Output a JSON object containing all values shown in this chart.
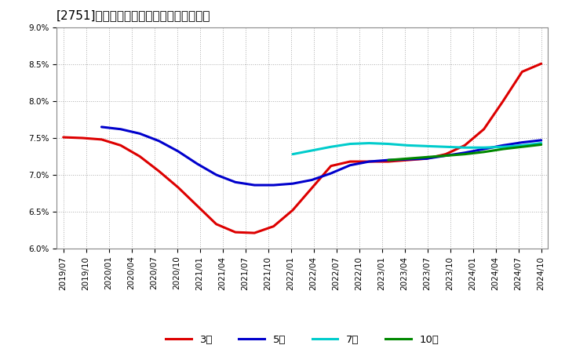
{
  "title": "[2751]　経常利益マージンの平均値の推移",
  "ylim": [
    0.06,
    0.09
  ],
  "yticks": [
    0.06,
    0.065,
    0.07,
    0.075,
    0.08,
    0.085,
    0.09
  ],
  "ytick_labels": [
    "6.0%",
    "6.5%",
    "7.0%",
    "7.5%",
    "8.0%",
    "8.5%",
    "9.0%"
  ],
  "background_color": "#ffffff",
  "grid_color": "#999999",
  "series": {
    "3year": {
      "color": "#dd0000",
      "label": "3年",
      "points": [
        [
          0,
          0.0751
        ],
        [
          1,
          0.075
        ],
        [
          2,
          0.0748
        ],
        [
          3,
          0.074
        ],
        [
          4,
          0.0725
        ],
        [
          5,
          0.0705
        ],
        [
          6,
          0.0683
        ],
        [
          7,
          0.0658
        ],
        [
          8,
          0.0633
        ],
        [
          9,
          0.0622
        ],
        [
          10,
          0.0621
        ],
        [
          11,
          0.063
        ],
        [
          12,
          0.0652
        ],
        [
          13,
          0.0682
        ],
        [
          14,
          0.0712
        ],
        [
          15,
          0.0718
        ],
        [
          16,
          0.0718
        ],
        [
          17,
          0.0718
        ],
        [
          18,
          0.072
        ],
        [
          19,
          0.0722
        ],
        [
          20,
          0.0728
        ],
        [
          21,
          0.074
        ],
        [
          22,
          0.0762
        ],
        [
          23,
          0.08
        ],
        [
          24,
          0.084
        ],
        [
          25,
          0.0851
        ]
      ]
    },
    "5year": {
      "color": "#0000cc",
      "label": "5年",
      "points": [
        [
          2,
          0.0765
        ],
        [
          3,
          0.0762
        ],
        [
          4,
          0.0756
        ],
        [
          5,
          0.0746
        ],
        [
          6,
          0.0732
        ],
        [
          7,
          0.0715
        ],
        [
          8,
          0.07
        ],
        [
          9,
          0.069
        ],
        [
          10,
          0.0686
        ],
        [
          11,
          0.0686
        ],
        [
          12,
          0.0688
        ],
        [
          13,
          0.0693
        ],
        [
          14,
          0.0702
        ],
        [
          15,
          0.0713
        ],
        [
          16,
          0.0718
        ],
        [
          17,
          0.072
        ],
        [
          18,
          0.0721
        ],
        [
          19,
          0.0722
        ],
        [
          20,
          0.0726
        ],
        [
          21,
          0.073
        ],
        [
          22,
          0.0735
        ],
        [
          23,
          0.074
        ],
        [
          24,
          0.0744
        ],
        [
          25,
          0.0747
        ]
      ]
    },
    "7year": {
      "color": "#00cccc",
      "label": "7年",
      "points": [
        [
          12,
          0.0728
        ],
        [
          13,
          0.0733
        ],
        [
          14,
          0.0738
        ],
        [
          15,
          0.0742
        ],
        [
          16,
          0.0743
        ],
        [
          17,
          0.0742
        ],
        [
          18,
          0.074
        ],
        [
          19,
          0.0739
        ],
        [
          20,
          0.0738
        ],
        [
          21,
          0.0737
        ],
        [
          22,
          0.0737
        ],
        [
          23,
          0.0738
        ],
        [
          24,
          0.074
        ],
        [
          25,
          0.0743
        ]
      ]
    },
    "10year": {
      "color": "#008800",
      "label": "10年",
      "points": [
        [
          17,
          0.072
        ],
        [
          18,
          0.0722
        ],
        [
          19,
          0.0724
        ],
        [
          20,
          0.0726
        ],
        [
          21,
          0.0728
        ],
        [
          22,
          0.0731
        ],
        [
          23,
          0.0735
        ],
        [
          24,
          0.0738
        ],
        [
          25,
          0.0741
        ]
      ]
    }
  },
  "x_labels": [
    "2019/07",
    "2019/10",
    "2020/01",
    "2020/04",
    "2020/07",
    "2020/10",
    "2021/01",
    "2021/04",
    "2021/07",
    "2021/10",
    "2022/01",
    "2022/04",
    "2022/07",
    "2022/10",
    "2023/01",
    "2023/04",
    "2023/07",
    "2023/10",
    "2024/01",
    "2024/04",
    "2024/07",
    "2024/10"
  ],
  "n_ticks": 22,
  "legend_entries": [
    "3年",
    "5年",
    "7年",
    "10年"
  ],
  "legend_colors": [
    "#dd0000",
    "#0000cc",
    "#00cccc",
    "#008800"
  ],
  "title_fontsize": 11,
  "tick_fontsize": 7.5,
  "linewidth": 2.2
}
